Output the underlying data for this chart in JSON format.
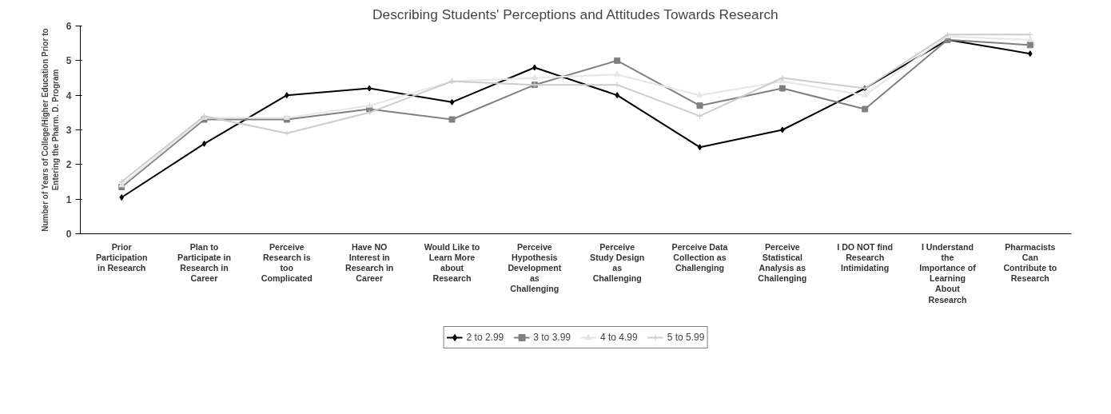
{
  "chart_data": {
    "type": "line",
    "title": "Describing Students' Perceptions and Attitudes Towards Research",
    "ylabel": "Number of Years of College/Higher Education Prior to\nEntering the Pharm. D. Program",
    "categories": [
      "Prior\nParticipation\nin Research",
      "Plan to\nParticipate in\nResearch in\nCareer",
      "Perceive\nResearch is\ntoo\nComplicated",
      "Have NO\nInterest in\nResearch in\nCareer",
      "Would Like to\nLearn More\nabout\nResearch",
      "Perceive\nHypothesis\nDevelopment\nas\nChallenging",
      "Perceive\nStudy Design\nas\nChallenging",
      "Perceive Data\nCollection as\nChallenging",
      "Perceive\nStatistical\nAnalysis as\nChallenging",
      "I DO NOT find\nResearch\nIntimidating",
      "I Understand\nthe\nImportance of\nLearning\nAbout\nResearch",
      "Pharmacists\nCan\nContribute to\nResearch"
    ],
    "ylim": [
      0,
      6
    ],
    "yticks": [
      0,
      1,
      2,
      3,
      4,
      5,
      6
    ],
    "grid": false,
    "legend": "bottom",
    "line_style": "solid",
    "series": [
      {
        "name": "2 to 2.99",
        "color": "#000000",
        "marker": "diamond",
        "values": [
          1.05,
          2.6,
          4.0,
          4.2,
          3.8,
          4.8,
          4.0,
          2.5,
          3.0,
          4.2,
          5.6,
          5.2
        ]
      },
      {
        "name": "3 to 3.99",
        "color": "#808080",
        "marker": "square",
        "values": [
          1.35,
          3.3,
          3.3,
          3.6,
          3.3,
          4.3,
          5.0,
          3.7,
          4.2,
          3.6,
          5.6,
          5.45
        ]
      },
      {
        "name": "4 to 4.99",
        "color": "#e6e6e6",
        "marker": "triangle",
        "values": [
          1.4,
          3.35,
          3.35,
          3.7,
          4.4,
          4.5,
          4.6,
          4.0,
          4.4,
          4.0,
          5.7,
          5.6
        ]
      },
      {
        "name": "5 to 5.99",
        "color": "#cccccc",
        "marker": "cross",
        "values": [
          1.5,
          3.4,
          2.9,
          3.5,
          4.4,
          4.3,
          4.3,
          3.4,
          4.5,
          4.2,
          5.75,
          5.75
        ]
      }
    ]
  }
}
